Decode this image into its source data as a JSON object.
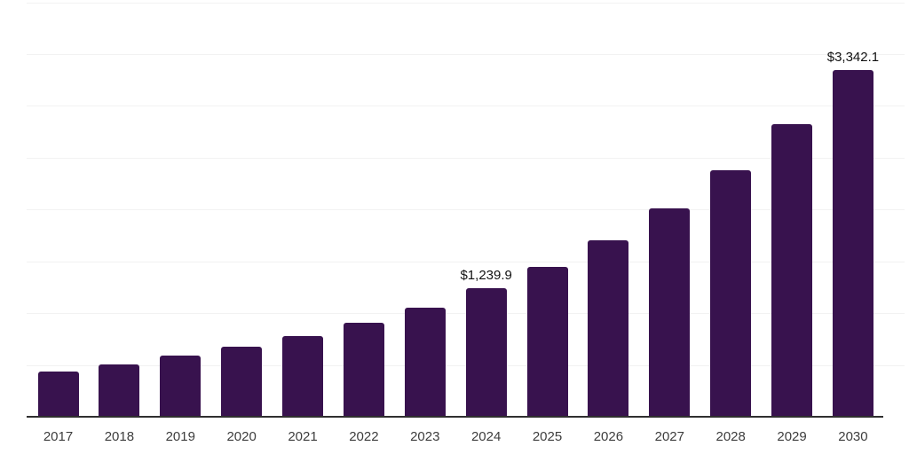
{
  "chart_data": {
    "type": "bar",
    "title": "",
    "xlabel": "",
    "ylabel": "",
    "categories": [
      "2017",
      "2018",
      "2019",
      "2020",
      "2021",
      "2022",
      "2023",
      "2024",
      "2025",
      "2026",
      "2027",
      "2028",
      "2029",
      "2030"
    ],
    "values": [
      435,
      503,
      588,
      674,
      776,
      904,
      1049,
      1239.9,
      1449,
      1705,
      2012,
      2379,
      2822,
      3342.1
    ],
    "data_labels": {
      "2024": "$1,239.9",
      "2030": "$3,342.1"
    },
    "ylim": [
      0,
      4000
    ],
    "gridline_step": 500,
    "grid": "horizontal",
    "legend": "none",
    "y_tick_labels_visible": false,
    "bar_color": "#38124e",
    "axis_line_color": "#2f2f2f",
    "gridline_color": "#f2f2f2",
    "tick_label_color": "#3d3d3d",
    "value_label_color": "#111111",
    "background_color": "#ffffff"
  }
}
